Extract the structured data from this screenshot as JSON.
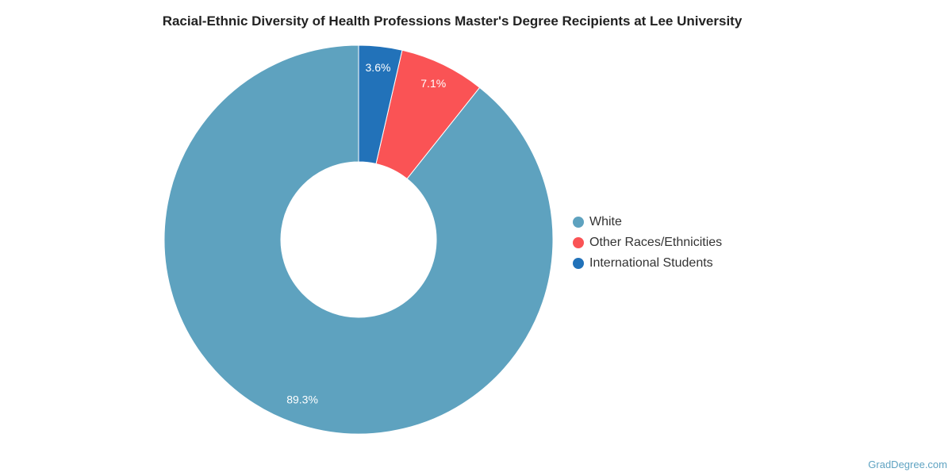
{
  "chart_data": {
    "type": "pie",
    "title": "Racial-Ethnic Diversity of Health Professions Master's Degree Recipients at Lee University",
    "categories": [
      "White",
      "Other Races/Ethnicities",
      "International Students"
    ],
    "values": [
      89.3,
      7.1,
      3.6
    ],
    "data_labels": [
      "89.3%",
      "7.1%",
      "3.6%"
    ],
    "colors": [
      "#5ea2bf",
      "#fa5355",
      "#2272b9"
    ],
    "donut": true,
    "legend_position": "right"
  },
  "footer": {
    "credit": "GradDegree.com"
  }
}
